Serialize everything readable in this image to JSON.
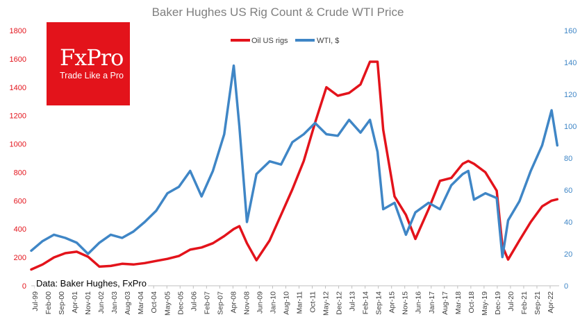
{
  "brand": {
    "name": "FxPro",
    "tagline": "Trade Like a Pro",
    "color": "#e3131b"
  },
  "source_note": "Data: Baker Hughes, FxPro",
  "chart_data": {
    "type": "line",
    "title": "Baker Hughes US Rig Count & Crude WTI Price",
    "grid": false,
    "legend_position": "top-center",
    "x_tick_labels": [
      "Jul-99",
      "Feb-00",
      "Sep-00",
      "Apr-01",
      "Nov-01",
      "Jun-02",
      "Jan-03",
      "Aug-03",
      "Mar-04",
      "Oct-04",
      "May-05",
      "Dec-05",
      "Jul-06",
      "Feb-07",
      "Sep-07",
      "Apr-08",
      "Nov-08",
      "Jun-09",
      "Jan-10",
      "Aug-10",
      "Mar-11",
      "Oct-11",
      "May-12",
      "Dec-12",
      "Jul-13",
      "Feb-14",
      "Sep-14",
      "Apr-15",
      "Nov-15",
      "Jun-16",
      "Jan-17",
      "Aug-17",
      "Mar-18",
      "Oct-18",
      "May-19",
      "Dec-19",
      "Jul-20",
      "Feb-21",
      "Sep-21",
      "Apr-22"
    ],
    "y_left": {
      "range": [
        0,
        1800
      ],
      "ticks": [
        0,
        200,
        400,
        600,
        800,
        1000,
        1200,
        1400,
        1600,
        1800
      ],
      "color": "#e3131b"
    },
    "y_right": {
      "range": [
        0,
        160
      ],
      "ticks": [
        0,
        20,
        40,
        60,
        80,
        100,
        120,
        140,
        160
      ],
      "color": "#3f86c6"
    },
    "x": [
      "Jul-99",
      "Jan-00",
      "Jul-00",
      "Jan-01",
      "Jul-01",
      "Jan-02",
      "Jul-02",
      "Jan-03",
      "Jul-03",
      "Jan-04",
      "Jul-04",
      "Jan-05",
      "Jul-05",
      "Jan-06",
      "Jul-06",
      "Jan-07",
      "Jul-07",
      "Jan-08",
      "Jun-08",
      "Sep-08",
      "Jan-09",
      "Jun-09",
      "Jan-10",
      "Jul-10",
      "Jan-11",
      "Jul-11",
      "Jan-12",
      "Jul-12",
      "Jan-13",
      "Jul-13",
      "Jan-14",
      "Jun-14",
      "Oct-14",
      "Jan-15",
      "Jul-15",
      "Jan-16",
      "Jun-16",
      "Jan-17",
      "Jul-17",
      "Jan-18",
      "Jul-18",
      "Oct-18",
      "Jan-19",
      "Jul-19",
      "Jan-20",
      "Apr-20",
      "Jul-20",
      "Jan-21",
      "Jul-21",
      "Jan-22",
      "Jun-22",
      "Sep-22"
    ],
    "series": [
      {
        "name": "Oil US rigs",
        "axis": "left",
        "color": "#e3131b",
        "values": [
          115,
          150,
          200,
          230,
          240,
          205,
          135,
          140,
          155,
          150,
          160,
          175,
          190,
          210,
          255,
          270,
          300,
          350,
          400,
          420,
          300,
          180,
          320,
          500,
          680,
          880,
          1150,
          1400,
          1340,
          1360,
          1420,
          1580,
          1580,
          1100,
          630,
          500,
          330,
          540,
          740,
          760,
          860,
          880,
          860,
          800,
          670,
          280,
          185,
          320,
          450,
          560,
          600,
          610
        ]
      },
      {
        "name": "WTI, $",
        "axis": "right",
        "color": "#3f86c6",
        "values": [
          22,
          28,
          32,
          30,
          27,
          20,
          27,
          32,
          30,
          34,
          40,
          47,
          58,
          62,
          72,
          56,
          72,
          95,
          138,
          100,
          40,
          70,
          78,
          76,
          90,
          95,
          102,
          95,
          94,
          104,
          96,
          104,
          84,
          48,
          52,
          32,
          46,
          52,
          48,
          63,
          70,
          72,
          54,
          58,
          55,
          18,
          41,
          53,
          72,
          88,
          110,
          88
        ]
      }
    ]
  }
}
